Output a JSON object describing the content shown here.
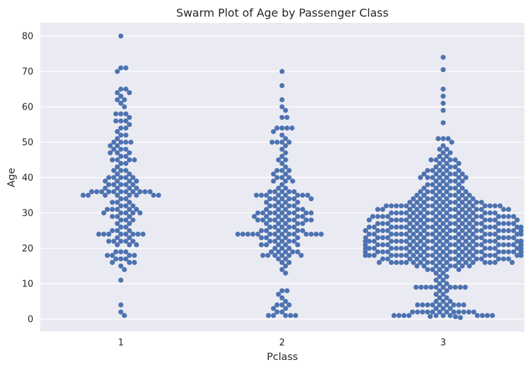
{
  "chart_data": {
    "type": "scatter",
    "subtype": "swarm",
    "title": "Swarm Plot of Age by Passenger Class",
    "xlabel": "Pclass",
    "ylabel": "Age",
    "categories": [
      "1",
      "2",
      "3"
    ],
    "ylim": [
      -4,
      84
    ],
    "yticks": [
      0,
      10,
      20,
      30,
      40,
      50,
      60,
      70,
      80
    ],
    "grid": true,
    "legend": "none",
    "colors": {
      "point": "#4c72b0",
      "background": "#eaeaf2",
      "grid": "#ffffff"
    },
    "groups": [
      {
        "category": "1",
        "ages": [
          80,
          71,
          71,
          70,
          65,
          65,
          64,
          64,
          63,
          62,
          62,
          61,
          60,
          58,
          58,
          58,
          57,
          56,
          56,
          56,
          55,
          54,
          54,
          53,
          52,
          52,
          51,
          50,
          50,
          50,
          50,
          49,
          49,
          48,
          48,
          48,
          47,
          47,
          47,
          46,
          46,
          45,
          45,
          45,
          45,
          44,
          44,
          43,
          42,
          42,
          42,
          41,
          41,
          40,
          40,
          40,
          40,
          40,
          39,
          39,
          39,
          39,
          38,
          38,
          38,
          38,
          38,
          37,
          37,
          37,
          37,
          36,
          36,
          36,
          36,
          36,
          36,
          36,
          36,
          36,
          36,
          36,
          35,
          35,
          35,
          35,
          35,
          35,
          35,
          35,
          34,
          34,
          33,
          33,
          33,
          32,
          32,
          32,
          31,
          31,
          31,
          31,
          31,
          30,
          30,
          30,
          30,
          30,
          29,
          29,
          29,
          28,
          28,
          28,
          27,
          27,
          26,
          26,
          25,
          25,
          25,
          24,
          24,
          24,
          24,
          24,
          24,
          24,
          24,
          23,
          23,
          22,
          22,
          22,
          22,
          22,
          21,
          21,
          21,
          19,
          19,
          19,
          18,
          18,
          18,
          18,
          17,
          17,
          17,
          16,
          16,
          16,
          15,
          14,
          11,
          4,
          2,
          1
        ]
      },
      {
        "category": "2",
        "ages": [
          70,
          66,
          62,
          60,
          59,
          57,
          57,
          54,
          54,
          54,
          54,
          53,
          52,
          51,
          50,
          50,
          50,
          50,
          49,
          48,
          47,
          46,
          45,
          45,
          44,
          43,
          42,
          42,
          42,
          41,
          41,
          40,
          40,
          40,
          39,
          39,
          39,
          38,
          37,
          37,
          36,
          36,
          36,
          36,
          36,
          35,
          35,
          35,
          35,
          35,
          35,
          35,
          35,
          34,
          34,
          34,
          34,
          34,
          34,
          33,
          33,
          33,
          33,
          32,
          32,
          32,
          32,
          32,
          31,
          31,
          31,
          31,
          31,
          30,
          30,
          30,
          30,
          30,
          30,
          30,
          30,
          30,
          29,
          29,
          29,
          29,
          29,
          29,
          28,
          28,
          28,
          28,
          28,
          28,
          28,
          28,
          28,
          27,
          27,
          27,
          27,
          27,
          26,
          26,
          26,
          26,
          26,
          25,
          25,
          25,
          25,
          25,
          25,
          24,
          24,
          24,
          24,
          24,
          24,
          24,
          24,
          24,
          24,
          24,
          24,
          24,
          24,
          23,
          23,
          23,
          23,
          23,
          22,
          22,
          22,
          22,
          22,
          21,
          21,
          21,
          21,
          21,
          20,
          20,
          20,
          19,
          19,
          19,
          19,
          19,
          18,
          18,
          18,
          18,
          18,
          18,
          17,
          17,
          16,
          16,
          15,
          14,
          13,
          8,
          8,
          7,
          6,
          5,
          4,
          4,
          4,
          3,
          3,
          2,
          2,
          1,
          1,
          1,
          1,
          1
        ]
      },
      {
        "category": "3",
        "ages": [
          74,
          70.5,
          65,
          63,
          61,
          59,
          55.5,
          51,
          51,
          51,
          50,
          49,
          48,
          48,
          47,
          47,
          46,
          46,
          45,
          45,
          45,
          45,
          45,
          44,
          44,
          44,
          43,
          43,
          43,
          43,
          42,
          42,
          42,
          42,
          42,
          41,
          41,
          41,
          41,
          41,
          41,
          40,
          40,
          40,
          40,
          40,
          40,
          40,
          39,
          39,
          39,
          39,
          39,
          38,
          38,
          38,
          38,
          38,
          37,
          37,
          37,
          37,
          37,
          37,
          36,
          36,
          36,
          36,
          36,
          36,
          36,
          35,
          35,
          35,
          35,
          35,
          35,
          35,
          35,
          34,
          34,
          34,
          34,
          34,
          34,
          34,
          34,
          34,
          33,
          33,
          33,
          33,
          33,
          33,
          33,
          33,
          33,
          33,
          33,
          32,
          32,
          32,
          32,
          32,
          32,
          32,
          32,
          32,
          32,
          32,
          32,
          32,
          32,
          32,
          32,
          32,
          32,
          31,
          31,
          31,
          31,
          31,
          31,
          31,
          31,
          31,
          31,
          31,
          31,
          31,
          31,
          31,
          30,
          30,
          30,
          30,
          30,
          30,
          30,
          30,
          30,
          30,
          30,
          30,
          30,
          30,
          30,
          30,
          29,
          29,
          29,
          29,
          29,
          29,
          29,
          29,
          29,
          29,
          29,
          29,
          29,
          29,
          29,
          29,
          29,
          29,
          29,
          28,
          28,
          28,
          28,
          28,
          28,
          28,
          28,
          28,
          28,
          28,
          28,
          28,
          28,
          28,
          28,
          28,
          28,
          27,
          27,
          27,
          27,
          27,
          27,
          27,
          27,
          27,
          27,
          27,
          27,
          27,
          27,
          27,
          27,
          27,
          27,
          26,
          26,
          26,
          26,
          26,
          26,
          26,
          26,
          26,
          26,
          26,
          26,
          26,
          26,
          26,
          26,
          26,
          26,
          26,
          26,
          25,
          25,
          25,
          25,
          25,
          25,
          25,
          25,
          25,
          25,
          25,
          25,
          25,
          25,
          25,
          25,
          25,
          25,
          25,
          25,
          25,
          25,
          25,
          24,
          24,
          24,
          24,
          24,
          24,
          24,
          24,
          24,
          24,
          24,
          24,
          24,
          24,
          24,
          24,
          24,
          24,
          24,
          24,
          23,
          23,
          23,
          23,
          23,
          23,
          23,
          23,
          23,
          23,
          23,
          23,
          23,
          23,
          23,
          23,
          23,
          23,
          23,
          22,
          22,
          22,
          22,
          22,
          22,
          22,
          22,
          22,
          22,
          22,
          22,
          22,
          22,
          22,
          22,
          22,
          22,
          22,
          22,
          22,
          22,
          22,
          22,
          22,
          21,
          21,
          21,
          21,
          21,
          21,
          21,
          21,
          21,
          21,
          21,
          21,
          21,
          21,
          21,
          21,
          21,
          21,
          21,
          21,
          21,
          21,
          21,
          21,
          21,
          21,
          21,
          21,
          20,
          20,
          20,
          20,
          20,
          20,
          20,
          20,
          20,
          20,
          20,
          20,
          20,
          20,
          20,
          20,
          20,
          20,
          20,
          20,
          20,
          20,
          19,
          19,
          19,
          19,
          19,
          19,
          19,
          19,
          19,
          19,
          19,
          19,
          19,
          19,
          19,
          19,
          19,
          19,
          19,
          19,
          19,
          19,
          19,
          19,
          19,
          19,
          19,
          18,
          18,
          18,
          18,
          18,
          18,
          18,
          18,
          18,
          18,
          18,
          18,
          18,
          18,
          18,
          18,
          18,
          18,
          18,
          18,
          18,
          18,
          17,
          17,
          17,
          17,
          17,
          17,
          17,
          17,
          17,
          17,
          17,
          17,
          17,
          17,
          17,
          17,
          16,
          16,
          16,
          16,
          16,
          16,
          16,
          16,
          16,
          16,
          16,
          16,
          16,
          16,
          16,
          16,
          16,
          16,
          15,
          15,
          15,
          15,
          15,
          15,
          15,
          15,
          14,
          14,
          14,
          14,
          14,
          13,
          13,
          12,
          12,
          11,
          11,
          10,
          10,
          9,
          9,
          9,
          9,
          9,
          9,
          9,
          9,
          9,
          9,
          8,
          8,
          7,
          7,
          6,
          6,
          5,
          5,
          5,
          4,
          4,
          4,
          4,
          4,
          4,
          4,
          4,
          4,
          3,
          3,
          3,
          2,
          2,
          2,
          2,
          2,
          2,
          2,
          2,
          2,
          2,
          2,
          2,
          1,
          1,
          1,
          1,
          1,
          1,
          1,
          1,
          1,
          1,
          1,
          0.75,
          0.67,
          0.42
        ]
      }
    ]
  }
}
